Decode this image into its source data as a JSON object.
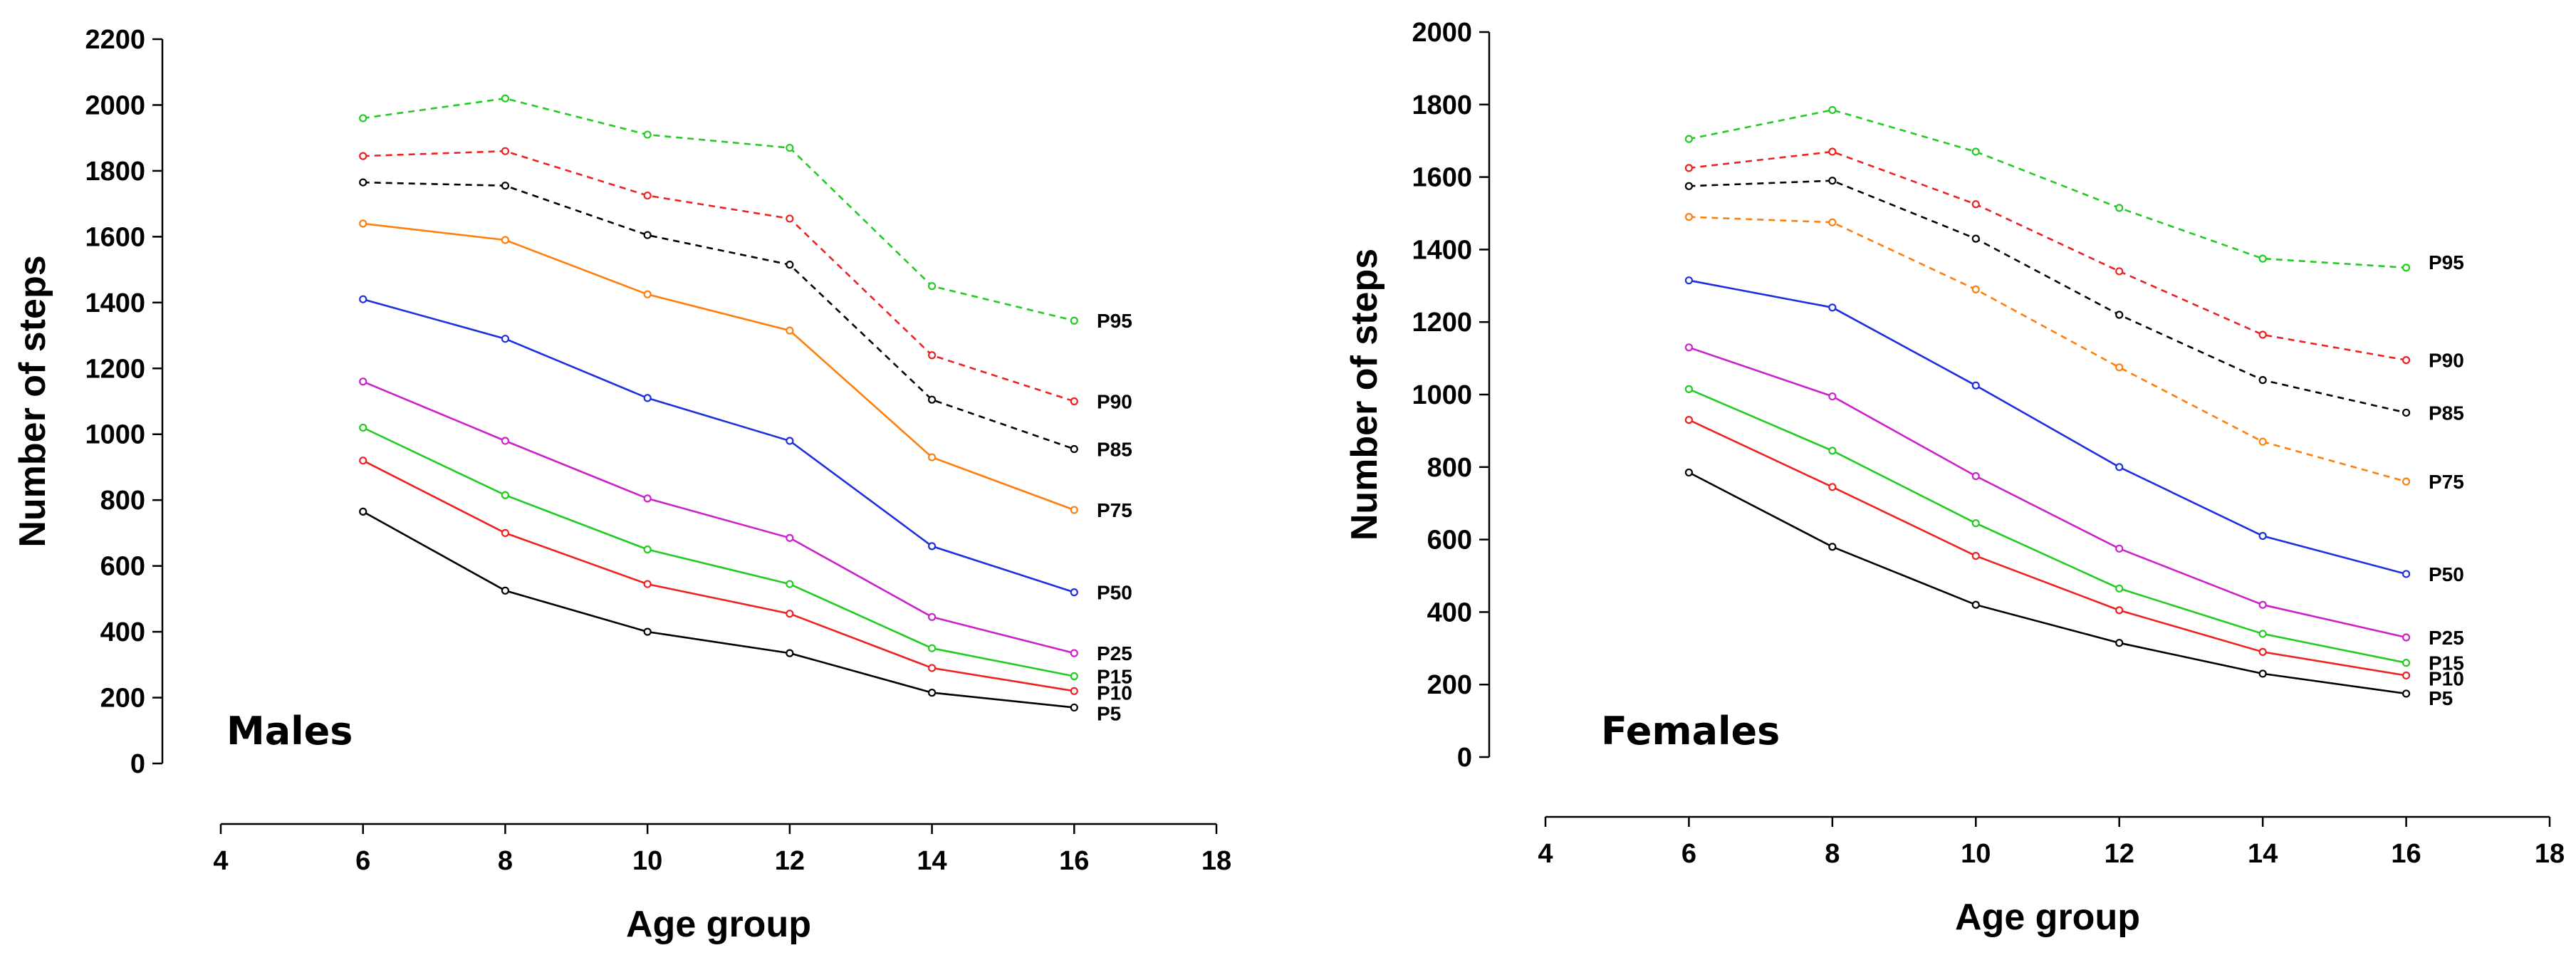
{
  "chart_data": [
    {
      "type": "line",
      "panel_label": "Males",
      "xlabel": "Age group",
      "ylabel": "Number of steps",
      "xlim": [
        4,
        18
      ],
      "xticks": [
        "4",
        "6",
        "8",
        "10",
        "12",
        "14",
        "16",
        "18"
      ],
      "ylim": [
        0,
        2200
      ],
      "yticks": [
        "0",
        "200",
        "400",
        "600",
        "800",
        "1000",
        "1200",
        "1400",
        "1600",
        "1800",
        "2000",
        "2200"
      ],
      "x": [
        6,
        8,
        10,
        12,
        14,
        16
      ],
      "series": [
        {
          "name": "P95",
          "color": "#22cc22",
          "dashed": true,
          "values": [
            1960,
            2020,
            1910,
            1870,
            1450,
            1345
          ]
        },
        {
          "name": "P90",
          "color": "#ee2222",
          "dashed": true,
          "values": [
            1845,
            1860,
            1725,
            1655,
            1240,
            1100
          ]
        },
        {
          "name": "P85",
          "color": "#000000",
          "dashed": true,
          "values": [
            1765,
            1755,
            1605,
            1515,
            1105,
            955
          ]
        },
        {
          "name": "P75",
          "color": "#ff7f0e",
          "dashed": false,
          "values": [
            1640,
            1590,
            1425,
            1315,
            930,
            770
          ]
        },
        {
          "name": "P50",
          "color": "#1f2fe0",
          "dashed": false,
          "values": [
            1410,
            1290,
            1110,
            980,
            660,
            520
          ]
        },
        {
          "name": "P25",
          "color": "#cc22cc",
          "dashed": false,
          "values": [
            1160,
            980,
            805,
            685,
            445,
            335
          ]
        },
        {
          "name": "P15",
          "color": "#22cc22",
          "dashed": false,
          "values": [
            1020,
            815,
            650,
            545,
            350,
            265
          ]
        },
        {
          "name": "P10",
          "color": "#ee2222",
          "dashed": false,
          "values": [
            920,
            700,
            545,
            455,
            290,
            220
          ]
        },
        {
          "name": "P5",
          "color": "#000000",
          "dashed": false,
          "values": [
            765,
            525,
            400,
            335,
            215,
            170
          ]
        }
      ]
    },
    {
      "type": "line",
      "panel_label": "Females",
      "xlabel": "Age group",
      "ylabel": "Number of steps",
      "xlim": [
        4,
        18
      ],
      "xticks": [
        "4",
        "6",
        "8",
        "10",
        "12",
        "14",
        "16",
        "18"
      ],
      "ylim": [
        0,
        2000
      ],
      "yticks": [
        "0",
        "200",
        "400",
        "600",
        "800",
        "1000",
        "1200",
        "1400",
        "1600",
        "1800",
        "2000"
      ],
      "x": [
        6,
        8,
        10,
        12,
        14,
        16
      ],
      "series": [
        {
          "name": "P95",
          "color": "#22cc22",
          "dashed": true,
          "values": [
            1705,
            1785,
            1670,
            1515,
            1375,
            1350
          ]
        },
        {
          "name": "P90",
          "color": "#ee2222",
          "dashed": true,
          "values": [
            1625,
            1670,
            1525,
            1340,
            1165,
            1095
          ]
        },
        {
          "name": "P85",
          "color": "#000000",
          "dashed": true,
          "values": [
            1575,
            1590,
            1430,
            1220,
            1040,
            950
          ]
        },
        {
          "name": "P75",
          "color": "#ff7f0e",
          "dashed": true,
          "values": [
            1490,
            1475,
            1290,
            1075,
            870,
            760
          ]
        },
        {
          "name": "P50",
          "color": "#1f2fe0",
          "dashed": false,
          "values": [
            1315,
            1240,
            1025,
            800,
            610,
            505
          ]
        },
        {
          "name": "P25",
          "color": "#cc22cc",
          "dashed": false,
          "values": [
            1130,
            995,
            775,
            575,
            420,
            330
          ]
        },
        {
          "name": "P15",
          "color": "#22cc22",
          "dashed": false,
          "values": [
            1015,
            845,
            645,
            465,
            340,
            260
          ]
        },
        {
          "name": "P10",
          "color": "#ee2222",
          "dashed": false,
          "values": [
            930,
            745,
            555,
            405,
            290,
            225
          ]
        },
        {
          "name": "P5",
          "color": "#000000",
          "dashed": false,
          "values": [
            785,
            580,
            420,
            315,
            230,
            175
          ]
        }
      ]
    }
  ]
}
